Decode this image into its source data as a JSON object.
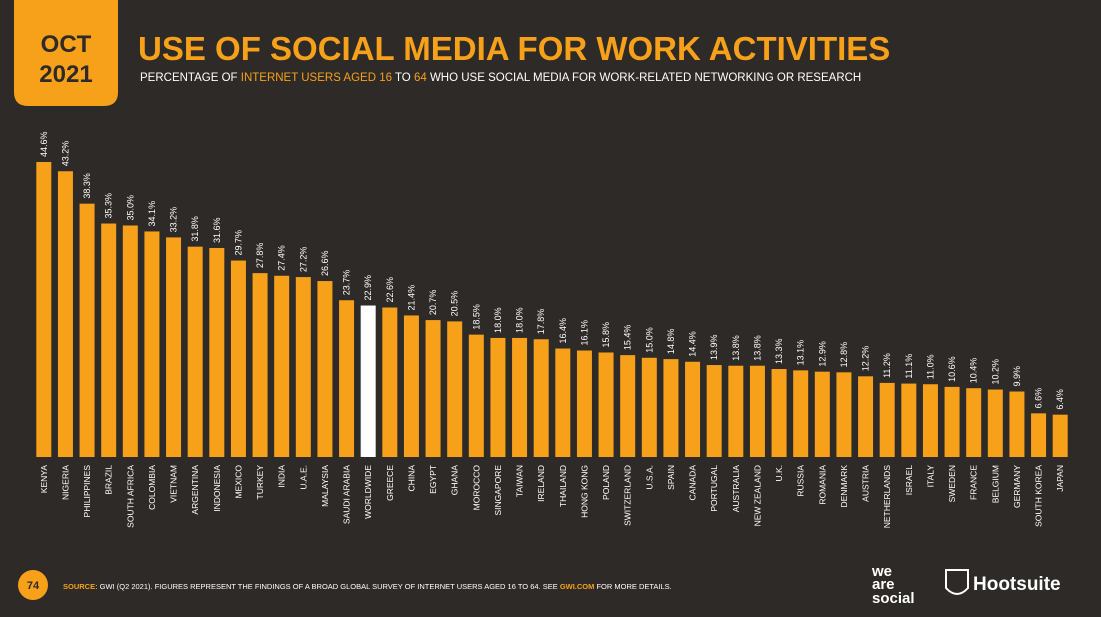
{
  "badge": {
    "month": "OCT",
    "year": "2021"
  },
  "chart_data": {
    "type": "bar",
    "title": "USE OF SOCIAL MEDIA FOR WORK ACTIVITIES",
    "subtitle_parts": [
      "PERCENTAGE OF ",
      "INTERNET USERS AGED 16",
      " TO ",
      "64",
      " WHO USE SOCIAL MEDIA FOR WORK-RELATED NETWORKING OR RESEARCH"
    ],
    "categories": [
      "KENYA",
      "NIGERIA",
      "PHILIPPINES",
      "BRAZIL",
      "SOUTH AFRICA",
      "COLOMBIA",
      "VIETNAM",
      "ARGENTINA",
      "INDONESIA",
      "MEXICO",
      "TURKEY",
      "INDIA",
      "U.A.E.",
      "MALAYSIA",
      "SAUDI ARABIA",
      "WORLDWIDE",
      "GREECE",
      "CHINA",
      "EGYPT",
      "GHANA",
      "MOROCCO",
      "SINGAPORE",
      "TAIWAN",
      "IRELAND",
      "THAILAND",
      "HONG KONG",
      "POLAND",
      "SWITZERLAND",
      "U.S.A.",
      "SPAIN",
      "CANADA",
      "PORTUGAL",
      "AUSTRALIA",
      "NEW ZEALAND",
      "U.K.",
      "RUSSIA",
      "ROMANIA",
      "DENMARK",
      "AUSTRIA",
      "NETHERLANDS",
      "ISRAEL",
      "ITALY",
      "SWEDEN",
      "FRANCE",
      "BELGIUM",
      "GERMANY",
      "SOUTH KOREA",
      "JAPAN"
    ],
    "values": [
      44.6,
      43.2,
      38.3,
      35.3,
      35.0,
      34.1,
      33.2,
      31.8,
      31.6,
      29.7,
      27.8,
      27.4,
      27.2,
      26.6,
      23.7,
      22.9,
      22.6,
      21.4,
      20.7,
      20.5,
      18.5,
      18.0,
      18.0,
      17.8,
      16.4,
      16.1,
      15.8,
      15.4,
      15.0,
      14.8,
      14.4,
      13.9,
      13.8,
      13.8,
      13.3,
      13.1,
      12.9,
      12.8,
      12.2,
      11.2,
      11.1,
      11.0,
      10.6,
      10.4,
      10.2,
      9.9,
      6.6,
      6.4
    ],
    "value_labels": [
      "44.6%",
      "43.2%",
      "38.3%",
      "35.3%",
      "35.0%",
      "34.1%",
      "33.2%",
      "31.8%",
      "31.6%",
      "29.7%",
      "27.8%",
      "27.4%",
      "27.2%",
      "26.6%",
      "23.7%",
      "22.9%",
      "22.6%",
      "21.4%",
      "20.7%",
      "20.5%",
      "18.5%",
      "18.0%",
      "18.0%",
      "17.8%",
      "16.4%",
      "16.1%",
      "15.8%",
      "15.4%",
      "15.0%",
      "14.8%",
      "14.4%",
      "13.9%",
      "13.8%",
      "13.8%",
      "13.3%",
      "13.1%",
      "12.9%",
      "12.8%",
      "12.2%",
      "11.2%",
      "11.1%",
      "11.0%",
      "10.6%",
      "10.4%",
      "10.2%",
      "9.9%",
      "6.6%",
      "6.4%"
    ],
    "colors": [
      "#f7a11a",
      "#f7a11a",
      "#f7a11a",
      "#f7a11a",
      "#f7a11a",
      "#f7a11a",
      "#f7a11a",
      "#f7a11a",
      "#f7a11a",
      "#f7a11a",
      "#f7a11a",
      "#f7a11a",
      "#f7a11a",
      "#f7a11a",
      "#f7a11a",
      "#ffffff",
      "#f7a11a",
      "#f7a11a",
      "#f7a11a",
      "#f7a11a",
      "#f7a11a",
      "#f7a11a",
      "#f7a11a",
      "#f7a11a",
      "#f7a11a",
      "#f7a11a",
      "#f7a11a",
      "#f7a11a",
      "#f7a11a",
      "#f7a11a",
      "#f7a11a",
      "#f7a11a",
      "#f7a11a",
      "#f7a11a",
      "#f7a11a",
      "#f7a11a",
      "#f7a11a",
      "#f7a11a",
      "#f7a11a",
      "#f7a11a",
      "#f7a11a",
      "#f7a11a",
      "#f7a11a",
      "#f7a11a",
      "#f7a11a",
      "#f7a11a",
      "#f7a11a",
      "#f7a11a"
    ]
  },
  "footer": {
    "page": "74",
    "source_label": "SOURCE:",
    "source_text": " GWI (Q2 2021). FIGURES REPRESENT THE FINDINGS OF A BROAD GLOBAL SURVEY OF INTERNET USERS AGED 16 TO 64. SEE ",
    "source_link": "GWI.COM",
    "source_end": " FOR MORE DETAILS."
  },
  "logos": {
    "was_1": "we",
    "was_2": "are",
    "was_3": "social",
    "hootsuite": "Hootsuite"
  }
}
